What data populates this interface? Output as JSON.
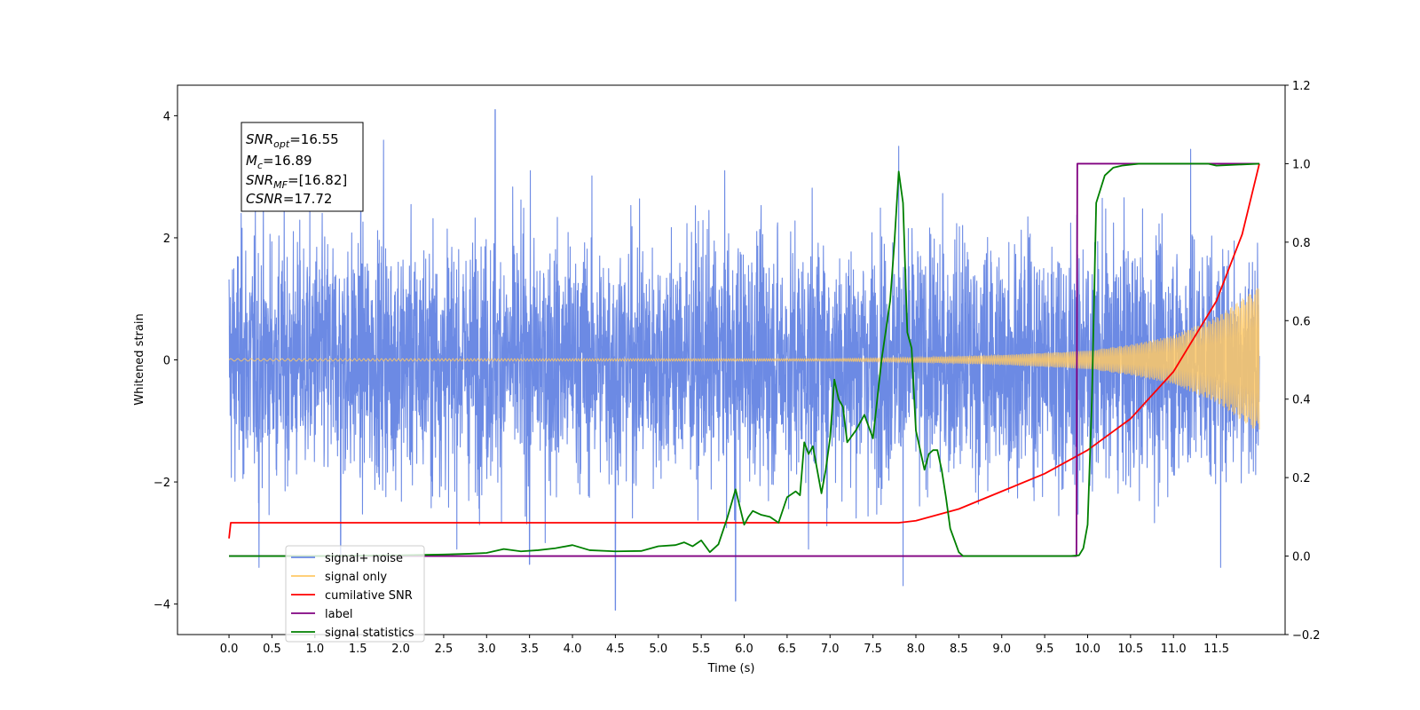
{
  "chart_data": {
    "type": "line",
    "title": "",
    "xlabel": "Time (s)",
    "ylabel": "Whitened strain",
    "y2label": "",
    "xlim": [
      -0.6,
      12.3
    ],
    "ylim": [
      -4.5,
      4.5
    ],
    "y2lim": [
      -0.2,
      1.2
    ],
    "x_ticks": [
      0.0,
      0.5,
      1.0,
      1.5,
      2.0,
      2.5,
      3.0,
      3.5,
      4.0,
      4.5,
      5.0,
      5.5,
      6.0,
      6.5,
      7.0,
      7.5,
      8.0,
      8.5,
      9.0,
      9.5,
      10.0,
      10.5,
      11.0,
      11.5
    ],
    "x_tick_labels": [
      "0.0",
      "0.5",
      "1.0",
      "1.5",
      "2.0",
      "2.5",
      "3.0",
      "3.5",
      "4.0",
      "4.5",
      "5.0",
      "5.5",
      "6.0",
      "6.5",
      "7.0",
      "7.5",
      "8.0",
      "8.5",
      "9.0",
      "9.5",
      "10.0",
      "10.5",
      "11.0",
      "11.5"
    ],
    "y_ticks": [
      -4,
      -2,
      0,
      2,
      4
    ],
    "y_tick_labels": [
      "−4",
      "−2",
      "0",
      "2",
      "4"
    ],
    "y2_ticks": [
      -0.2,
      0.0,
      0.2,
      0.4,
      0.6,
      0.8,
      1.0,
      1.2
    ],
    "y2_tick_labels": [
      "−0.2",
      "0.0",
      "0.2",
      "0.4",
      "0.6",
      "0.8",
      "1.0",
      "1.2"
    ],
    "grid": false,
    "legend_position": "lower-left",
    "legend": [
      {
        "label": "signal+ noise",
        "color": "#6c8ae4"
      },
      {
        "label": "signal only",
        "color": "#ffc966"
      },
      {
        "label": "cumilative SNR",
        "color": "#ff0000"
      },
      {
        "label": "label",
        "color": "#800080"
      },
      {
        "label": "signal statistics",
        "color": "#008000"
      }
    ],
    "stats_box": {
      "snr_opt": {
        "sym": "SNR",
        "sub": "opt",
        "value": "=16.55"
      },
      "mc": {
        "sym": "M",
        "sub": "c",
        "value": "=16.89"
      },
      "snr_mf": {
        "sym": "SNR",
        "sub": "MF",
        "value": "=[16.82]"
      },
      "csnr": {
        "sym": "CSNR",
        "sub": "",
        "value": "=17.72"
      }
    },
    "series": [
      {
        "name": "signal+ noise",
        "axis": "left",
        "color": "#6c8ae4",
        "style": "noise",
        "x_range": [
          0.0,
          12.0
        ],
        "typical_amplitude": 1.8,
        "extremes": [
          {
            "x": 0.35,
            "y": -3.4
          },
          {
            "x": 1.3,
            "y": -3.2
          },
          {
            "x": 1.8,
            "y": 3.6
          },
          {
            "x": 3.1,
            "y": 4.1
          },
          {
            "x": 3.5,
            "y": -3.35
          },
          {
            "x": 4.5,
            "y": -4.1
          },
          {
            "x": 5.9,
            "y": -3.95
          },
          {
            "x": 6.75,
            "y": -3.1
          },
          {
            "x": 7.85,
            "y": -3.7
          },
          {
            "x": 7.8,
            "y": 3.5
          },
          {
            "x": 11.2,
            "y": 3.45
          },
          {
            "x": 11.55,
            "y": -3.4
          }
        ]
      },
      {
        "name": "signal only",
        "axis": "left",
        "color": "#ffc966",
        "style": "chirp",
        "x_range": [
          0.0,
          12.0
        ],
        "amplitude_envelope": {
          "x": [
            0.0,
            7.0,
            8.0,
            9.0,
            10.0,
            10.5,
            11.0,
            11.5,
            12.0
          ],
          "y": [
            0.02,
            0.02,
            0.04,
            0.08,
            0.15,
            0.25,
            0.4,
            0.7,
            1.2
          ]
        }
      },
      {
        "name": "cumilative SNR",
        "axis": "right",
        "color": "#ff0000",
        "x": [
          0.0,
          0.02,
          7.5,
          7.8,
          8.0,
          8.5,
          9.0,
          9.5,
          10.0,
          10.5,
          11.0,
          11.5,
          11.8,
          12.0
        ],
        "y": [
          0.045,
          0.085,
          0.085,
          0.085,
          0.09,
          0.12,
          0.165,
          0.21,
          0.27,
          0.35,
          0.47,
          0.65,
          0.82,
          1.0
        ]
      },
      {
        "name": "label",
        "axis": "right",
        "color": "#800080",
        "x": [
          0.0,
          9.87,
          9.88,
          12.0
        ],
        "y": [
          0.0,
          0.0,
          1.0,
          1.0
        ]
      },
      {
        "name": "signal statistics",
        "axis": "right",
        "color": "#008000",
        "x": [
          0.0,
          1.0,
          2.0,
          2.5,
          2.8,
          3.0,
          3.2,
          3.4,
          3.6,
          3.8,
          4.0,
          4.2,
          4.5,
          4.8,
          5.0,
          5.2,
          5.3,
          5.4,
          5.5,
          5.6,
          5.7,
          5.8,
          5.9,
          6.0,
          6.05,
          6.1,
          6.2,
          6.3,
          6.4,
          6.5,
          6.6,
          6.65,
          6.7,
          6.75,
          6.8,
          6.9,
          6.95,
          7.0,
          7.05,
          7.1,
          7.15,
          7.2,
          7.3,
          7.4,
          7.5,
          7.6,
          7.7,
          7.75,
          7.8,
          7.85,
          7.9,
          7.95,
          8.0,
          8.05,
          8.1,
          8.15,
          8.2,
          8.25,
          8.3,
          8.35,
          8.4,
          8.5,
          8.55,
          8.6,
          8.7,
          9.0,
          9.5,
          9.8,
          9.9,
          9.95,
          10.0,
          10.05,
          10.1,
          10.2,
          10.3,
          10.4,
          10.6,
          11.0,
          11.4,
          11.5,
          12.0
        ],
        "y": [
          0.0,
          0.0,
          0.002,
          0.004,
          0.006,
          0.008,
          0.018,
          0.012,
          0.015,
          0.02,
          0.028,
          0.015,
          0.012,
          0.013,
          0.025,
          0.028,
          0.035,
          0.025,
          0.04,
          0.01,
          0.03,
          0.095,
          0.17,
          0.08,
          0.1,
          0.115,
          0.105,
          0.1,
          0.085,
          0.15,
          0.165,
          0.155,
          0.29,
          0.26,
          0.28,
          0.16,
          0.22,
          0.3,
          0.45,
          0.4,
          0.38,
          0.29,
          0.32,
          0.36,
          0.3,
          0.5,
          0.65,
          0.8,
          0.98,
          0.9,
          0.57,
          0.53,
          0.32,
          0.27,
          0.22,
          0.26,
          0.27,
          0.27,
          0.22,
          0.15,
          0.07,
          0.01,
          0.0,
          0.0,
          0.0,
          0.0,
          0.0,
          0.0,
          0.002,
          0.02,
          0.08,
          0.4,
          0.9,
          0.97,
          0.99,
          0.995,
          1.0,
          1.0,
          1.0,
          0.995,
          1.0
        ]
      }
    ]
  }
}
